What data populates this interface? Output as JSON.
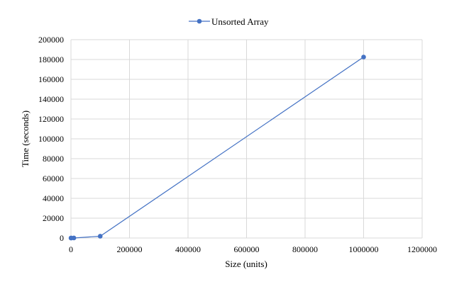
{
  "chart_data": {
    "type": "scatter",
    "title": "",
    "xlabel": "Size (units)",
    "ylabel": "Time (seconds)",
    "xlim": [
      0,
      1200000
    ],
    "ylim": [
      0,
      200000
    ],
    "x_ticks": [
      "0",
      "200000",
      "400000",
      "600000",
      "800000",
      "1000000",
      "1200000"
    ],
    "y_ticks": [
      "0",
      "20000",
      "40000",
      "60000",
      "80000",
      "100000",
      "120000",
      "140000",
      "160000",
      "180000",
      "200000"
    ],
    "grid": "on",
    "legend_position": "top",
    "series": [
      {
        "name": "Unsorted Array",
        "color": "#4472c4",
        "marker": "circle",
        "line": "straight",
        "points": [
          {
            "x": 100,
            "y": 0
          },
          {
            "x": 1000,
            "y": 0
          },
          {
            "x": 10000,
            "y": 20
          },
          {
            "x": 100000,
            "y": 1800
          },
          {
            "x": 1000000,
            "y": 182500
          }
        ]
      }
    ]
  }
}
